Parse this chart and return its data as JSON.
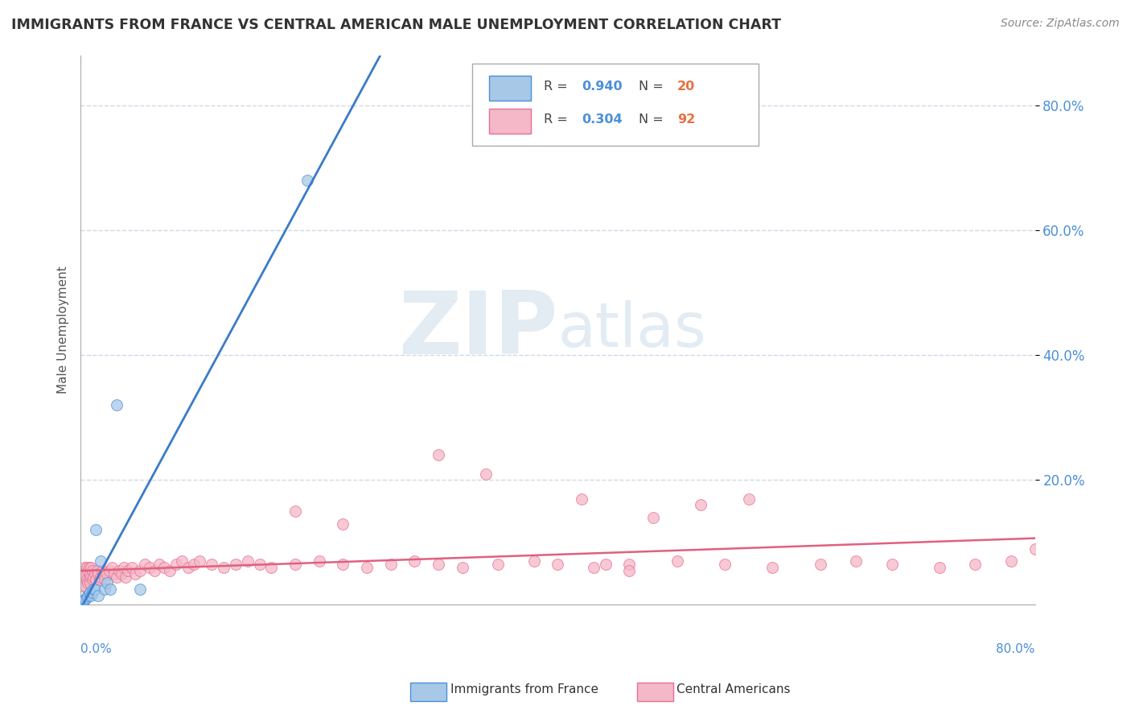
{
  "title": "IMMIGRANTS FROM FRANCE VS CENTRAL AMERICAN MALE UNEMPLOYMENT CORRELATION CHART",
  "source": "Source: ZipAtlas.com",
  "ylabel": "Male Unemployment",
  "france_color": "#a8c8e8",
  "france_edge": "#4a90d9",
  "france_line_color": "#3a7bc8",
  "central_color": "#f4b8c8",
  "central_edge": "#e87090",
  "central_line_color": "#e06080",
  "france_R": 0.94,
  "france_N": 20,
  "central_R": 0.304,
  "central_N": 92,
  "xlim": [
    0.0,
    0.8
  ],
  "ylim": [
    0.0,
    0.88
  ],
  "ytick_vals": [
    0.2,
    0.4,
    0.6,
    0.8
  ],
  "ytick_labels": [
    "20.0%",
    "40.0%",
    "60.0%",
    "80.0%"
  ],
  "france_scatter_x": [
    0.002,
    0.003,
    0.004,
    0.005,
    0.006,
    0.007,
    0.008,
    0.009,
    0.01,
    0.011,
    0.012,
    0.013,
    0.015,
    0.017,
    0.02,
    0.022,
    0.025,
    0.03,
    0.05,
    0.19
  ],
  "france_scatter_y": [
    0.005,
    0.008,
    0.01,
    0.012,
    0.015,
    0.018,
    0.02,
    0.015,
    0.02,
    0.025,
    0.025,
    0.12,
    0.015,
    0.07,
    0.025,
    0.035,
    0.025,
    0.32,
    0.025,
    0.68
  ],
  "central_scatter_x": [
    0.001,
    0.002,
    0.002,
    0.003,
    0.003,
    0.004,
    0.004,
    0.005,
    0.005,
    0.006,
    0.006,
    0.007,
    0.007,
    0.008,
    0.008,
    0.009,
    0.009,
    0.01,
    0.01,
    0.011,
    0.012,
    0.013,
    0.014,
    0.015,
    0.016,
    0.017,
    0.018,
    0.019,
    0.02,
    0.022,
    0.024,
    0.026,
    0.028,
    0.03,
    0.032,
    0.034,
    0.036,
    0.038,
    0.04,
    0.043,
    0.046,
    0.05,
    0.054,
    0.058,
    0.062,
    0.066,
    0.07,
    0.075,
    0.08,
    0.085,
    0.09,
    0.095,
    0.1,
    0.11,
    0.12,
    0.13,
    0.14,
    0.15,
    0.16,
    0.18,
    0.2,
    0.22,
    0.24,
    0.26,
    0.28,
    0.3,
    0.32,
    0.35,
    0.38,
    0.4,
    0.43,
    0.46,
    0.5,
    0.54,
    0.58,
    0.62,
    0.65,
    0.68,
    0.72,
    0.75,
    0.78,
    0.8,
    0.42,
    0.48,
    0.52,
    0.56,
    0.3,
    0.34,
    0.44,
    0.46,
    0.18,
    0.22
  ],
  "central_scatter_y": [
    0.04,
    0.05,
    0.03,
    0.04,
    0.06,
    0.05,
    0.03,
    0.04,
    0.06,
    0.035,
    0.055,
    0.04,
    0.06,
    0.05,
    0.035,
    0.045,
    0.06,
    0.04,
    0.055,
    0.045,
    0.05,
    0.04,
    0.055,
    0.05,
    0.04,
    0.045,
    0.055,
    0.05,
    0.04,
    0.05,
    0.055,
    0.06,
    0.05,
    0.045,
    0.055,
    0.05,
    0.06,
    0.045,
    0.055,
    0.06,
    0.05,
    0.055,
    0.065,
    0.06,
    0.055,
    0.065,
    0.06,
    0.055,
    0.065,
    0.07,
    0.06,
    0.065,
    0.07,
    0.065,
    0.06,
    0.065,
    0.07,
    0.065,
    0.06,
    0.065,
    0.07,
    0.065,
    0.06,
    0.065,
    0.07,
    0.065,
    0.06,
    0.065,
    0.07,
    0.065,
    0.06,
    0.065,
    0.07,
    0.065,
    0.06,
    0.065,
    0.07,
    0.065,
    0.06,
    0.065,
    0.07,
    0.09,
    0.17,
    0.14,
    0.16,
    0.17,
    0.24,
    0.21,
    0.065,
    0.055,
    0.15,
    0.13
  ],
  "watermark_zip": "ZIP",
  "watermark_atlas": "atlas",
  "background_color": "#ffffff",
  "grid_color": "#d0d8e8"
}
